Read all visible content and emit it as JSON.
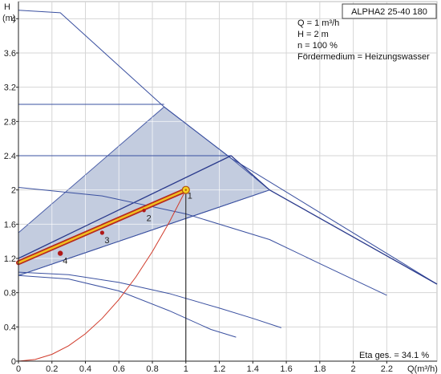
{
  "chart_data": {
    "type": "line",
    "title": "ALPHA2 25-40 180",
    "xlabel": "Q(m³/h)",
    "ylabel_top": "H",
    "ylabel_unit": "(m)",
    "xlim": [
      0,
      2.5
    ],
    "ylim": [
      0,
      4.2
    ],
    "x_ticks": [
      0,
      0.2,
      0.4,
      0.6,
      0.8,
      1,
      1.2,
      1.4,
      1.6,
      1.8,
      2,
      2.2
    ],
    "y_ticks": [
      0,
      0.4,
      0.8,
      1.2,
      1.6,
      2,
      2.4,
      2.8,
      3.2,
      3.6,
      4
    ],
    "grid": true,
    "info_lines": [
      "Q = 1 m³/h",
      "H = 2 m",
      "n = 100 %",
      "Fördermedium = Heizungswasser"
    ],
    "efficiency_label": "Eta ges. = 34.1 %",
    "shaded_region": [
      [
        0,
        1.0
      ],
      [
        0,
        1.5
      ],
      [
        0.87,
        2.97
      ],
      [
        1.27,
        2.37
      ],
      [
        1.5,
        2.0
      ]
    ],
    "series": [
      {
        "points": [
          [
            0,
            4.1
          ],
          [
            0.25,
            4.07
          ],
          [
            0.87,
            2.97
          ],
          [
            1.27,
            2.37
          ],
          [
            2.5,
            0.9
          ]
        ],
        "color": "#3a50a0",
        "width": 1
      },
      {
        "points": [
          [
            0,
            3.0
          ],
          [
            0.87,
            3.0
          ]
        ],
        "color": "#3a50a0",
        "width": 1
      },
      {
        "points": [
          [
            0,
            2.4
          ],
          [
            1.27,
            2.4
          ]
        ],
        "color": "#3a50a0",
        "width": 1
      },
      {
        "points": [
          [
            0,
            1.2
          ],
          [
            1.27,
            2.4
          ],
          [
            1.5,
            2.0
          ],
          [
            2.5,
            0.9
          ]
        ],
        "color": "#2a3a8c",
        "width": 1.3
      },
      {
        "points": [
          [
            0,
            1.0
          ],
          [
            1.5,
            2.0
          ]
        ],
        "color": "#3a50a0",
        "width": 1
      },
      {
        "points": [
          [
            0,
            2.03
          ],
          [
            0.5,
            1.93
          ],
          [
            1.0,
            1.72
          ],
          [
            1.5,
            1.42
          ],
          [
            1.8,
            1.14
          ],
          [
            2.2,
            0.77
          ]
        ],
        "color": "#3a50a0",
        "width": 1
      },
      {
        "points": [
          [
            0,
            1.04
          ],
          [
            0.3,
            1.01
          ],
          [
            0.6,
            0.92
          ],
          [
            0.9,
            0.79
          ],
          [
            1.2,
            0.62
          ],
          [
            1.4,
            0.5
          ],
          [
            1.57,
            0.39
          ]
        ],
        "color": "#3a50a0",
        "width": 1
      },
      {
        "points": [
          [
            0,
            1.0
          ],
          [
            0.3,
            0.96
          ],
          [
            0.6,
            0.82
          ],
          [
            0.9,
            0.59
          ],
          [
            1.15,
            0.37
          ],
          [
            1.3,
            0.28
          ]
        ],
        "color": "#3a50a0",
        "width": 1
      }
    ],
    "system_curve": {
      "points": [
        [
          0,
          0
        ],
        [
          0.1,
          0.02
        ],
        [
          0.2,
          0.08
        ],
        [
          0.3,
          0.18
        ],
        [
          0.4,
          0.32
        ],
        [
          0.5,
          0.5
        ],
        [
          0.6,
          0.72
        ],
        [
          0.7,
          0.98
        ],
        [
          0.8,
          1.28
        ],
        [
          0.9,
          1.62
        ],
        [
          1.0,
          2.0
        ]
      ],
      "color": "#d03a2a"
    },
    "highlight_line": {
      "points": [
        [
          0,
          1.15
        ],
        [
          1.0,
          2.0
        ]
      ],
      "color": "#f0c020",
      "outline": "#b82a1e"
    },
    "operating_point": {
      "x": 1.0,
      "y": 2.0,
      "label": "1"
    },
    "points": [
      {
        "x": 0.75,
        "y": 1.76,
        "label": "2"
      },
      {
        "x": 0.5,
        "y": 1.5,
        "label": "3"
      },
      {
        "x": 0.25,
        "y": 1.26,
        "label": "4"
      }
    ]
  }
}
